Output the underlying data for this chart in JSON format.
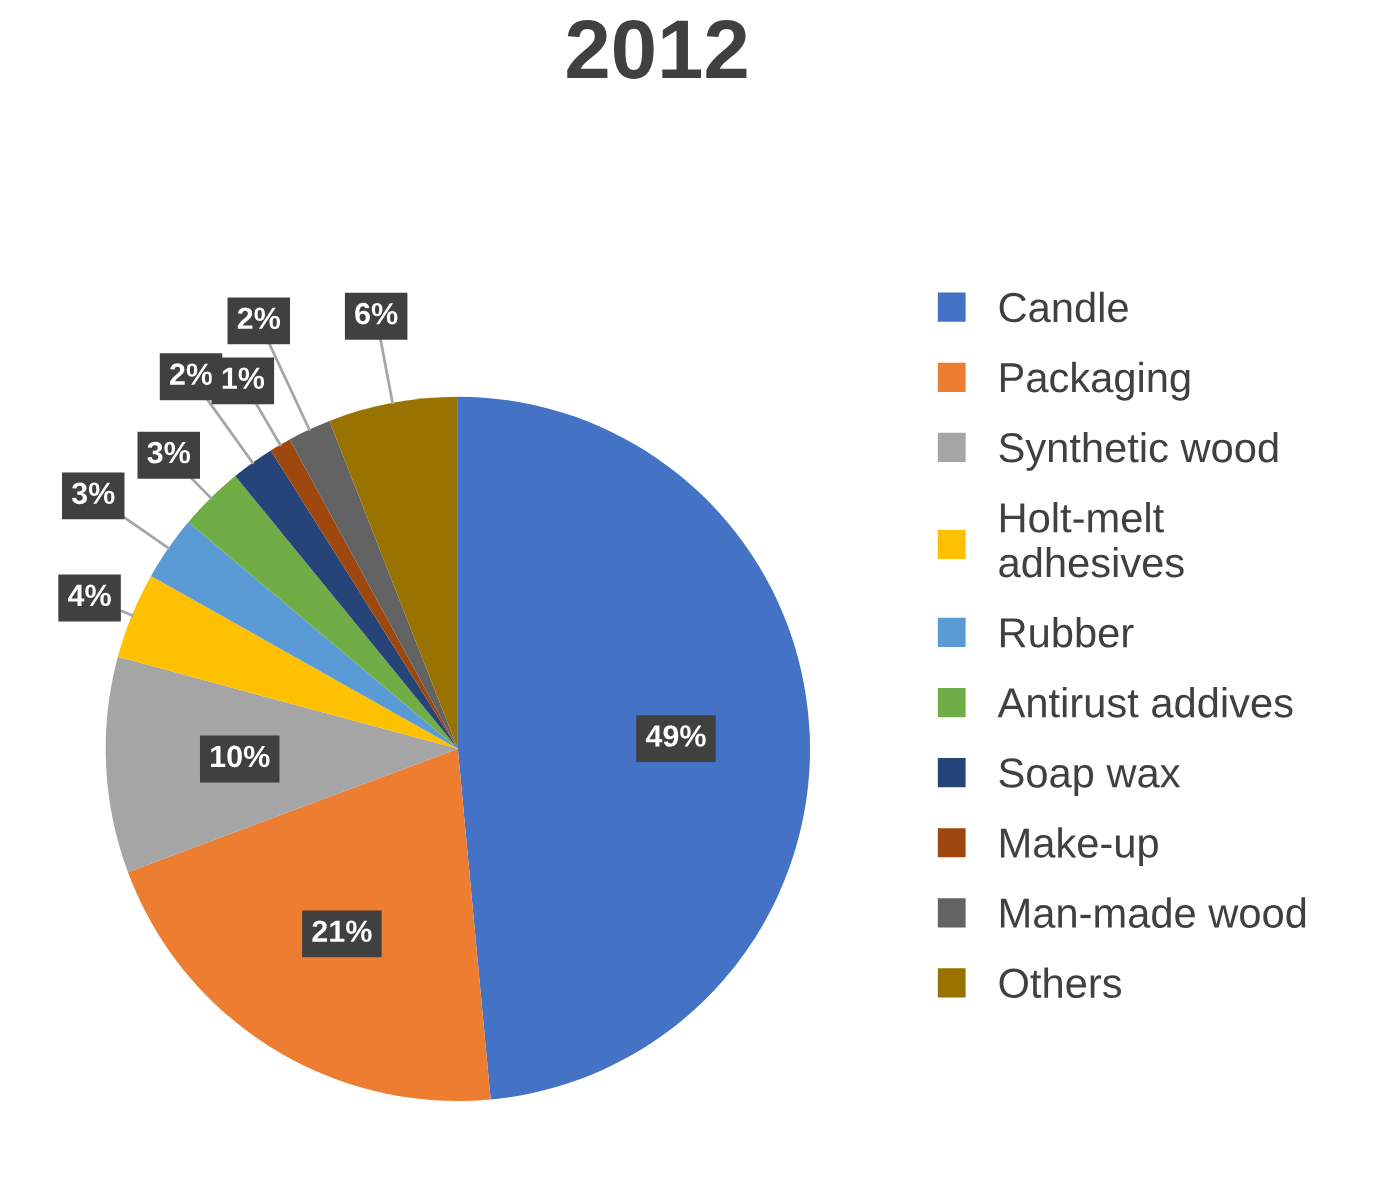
{
  "chart_data": {
    "type": "pie",
    "title": "2012",
    "categories": [
      "Candle",
      "Packaging",
      "Synthetic wood",
      "Holt-melt\nadhesives",
      "Rubber",
      "Antirust addives",
      "Soap wax",
      "Make-up",
      "Man-made wood",
      "Others"
    ],
    "values": [
      49,
      21,
      10,
      4,
      3,
      3,
      2,
      1,
      2,
      6
    ],
    "colors": [
      "#4472c4",
      "#ed7d31",
      "#a5a5a5",
      "#ffc000",
      "#5b9bd5",
      "#70ad47",
      "#264478",
      "#9e480e",
      "#636363",
      "#997300"
    ],
    "value_labels": [
      "49%",
      "21%",
      "10%",
      "4%",
      "3%",
      "3%",
      "2%",
      "1%",
      "2%",
      "6%"
    ],
    "legend": "right"
  }
}
